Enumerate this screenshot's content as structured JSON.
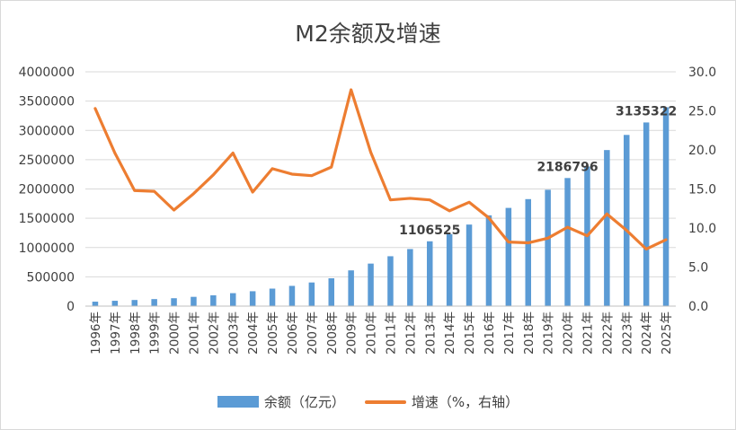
{
  "chart_data": {
    "type": "bar",
    "title": "M2余额及增速",
    "categories": [
      "1996年",
      "1997年",
      "1998年",
      "1999年",
      "2000年",
      "2001年",
      "2002年",
      "2003年",
      "2004年",
      "2005年",
      "2006年",
      "2007年",
      "2008年",
      "2009年",
      "2010年",
      "2011年",
      "2012年",
      "2013年",
      "2014年",
      "2015年",
      "2016年",
      "2017年",
      "2018年",
      "2019年",
      "2020年",
      "2021年",
      "2022年",
      "2023年",
      "2024年",
      "2025年"
    ],
    "series": [
      {
        "name": "余额（亿元）",
        "type": "bar",
        "axis": "left",
        "color": "#5b9bd5",
        "values": [
          76095,
          90995,
          104499,
          119898,
          134610,
          158302,
          185007,
          221223,
          254107,
          298756,
          345604,
          403442,
          475167,
          610225,
          725852,
          851591,
          974149,
          1106525,
          1228375,
          1392278,
          1550067,
          1676769,
          1826744,
          1986488,
          2186796,
          2382900,
          2664321,
          2922713,
          3135322,
          3395000
        ]
      },
      {
        "name": "增速（%，右轴）",
        "type": "line",
        "axis": "right",
        "color": "#ed7d31",
        "values": [
          25.3,
          19.6,
          14.8,
          14.7,
          12.3,
          14.4,
          16.8,
          19.6,
          14.6,
          17.6,
          16.9,
          16.7,
          17.8,
          27.7,
          19.7,
          13.6,
          13.8,
          13.6,
          12.2,
          13.3,
          11.3,
          8.2,
          8.1,
          8.7,
          10.1,
          9.0,
          11.8,
          9.7,
          7.3,
          8.5
        ]
      }
    ],
    "data_labels": [
      {
        "category": "2013年",
        "text": "1106525"
      },
      {
        "category": "2020年",
        "text": "2186796"
      },
      {
        "category": "2024年",
        "text": "3135322"
      }
    ],
    "left_axis": {
      "min": 0,
      "max": 4000000,
      "ticks": [
        "0",
        "500000",
        "1000000",
        "1500000",
        "2000000",
        "2500000",
        "3000000",
        "3500000",
        "4000000"
      ]
    },
    "right_axis": {
      "min": 0,
      "max": 30,
      "ticks": [
        "0.0",
        "5.0",
        "10.0",
        "15.0",
        "20.0",
        "25.0",
        "30.0"
      ]
    },
    "grid": true,
    "legend_position": "bottom"
  }
}
